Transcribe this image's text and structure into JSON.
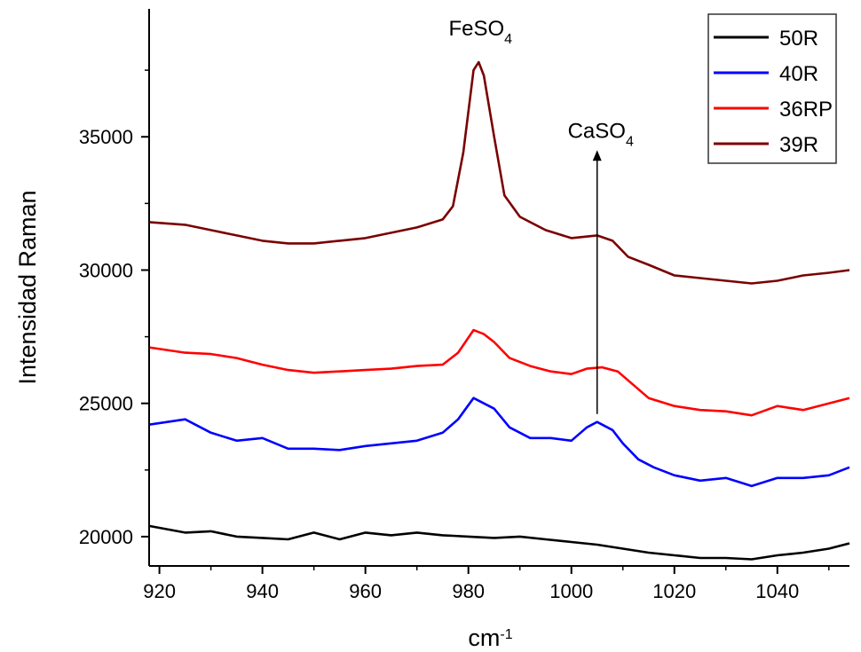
{
  "chart_data": {
    "type": "line",
    "title": "",
    "xlabel": "cm",
    "xlabel_sup": "-1",
    "ylabel": "Intensidad Raman",
    "xlim": [
      918,
      1054
    ],
    "ylim": [
      18900,
      39800
    ],
    "xticks": [
      920,
      940,
      960,
      980,
      1000,
      1020,
      1040
    ],
    "yticks": [
      20000,
      25000,
      30000,
      35000
    ],
    "grid": false,
    "legend_position": "top-right",
    "series": [
      {
        "name": "50R",
        "color": "#000000",
        "x": [
          918,
          925,
          930,
          935,
          940,
          945,
          950,
          955,
          960,
          965,
          970,
          975,
          980,
          985,
          990,
          995,
          1000,
          1005,
          1010,
          1015,
          1020,
          1025,
          1030,
          1035,
          1040,
          1045,
          1050,
          1054
        ],
        "y": [
          20400,
          20150,
          20200,
          20000,
          19950,
          19900,
          20150,
          19900,
          20150,
          20050,
          20150,
          20050,
          20000,
          19950,
          20000,
          19900,
          19800,
          19700,
          19550,
          19400,
          19300,
          19200,
          19200,
          19150,
          19300,
          19400,
          19550,
          19750
        ]
      },
      {
        "name": "40R",
        "color": "#0000ff",
        "x": [
          918,
          925,
          930,
          935,
          940,
          945,
          950,
          955,
          960,
          965,
          970,
          975,
          978,
          981,
          983,
          985,
          988,
          992,
          996,
          1000,
          1003,
          1005,
          1008,
          1010,
          1013,
          1016,
          1020,
          1025,
          1030,
          1035,
          1040,
          1045,
          1050,
          1054
        ],
        "y": [
          24200,
          24400,
          23900,
          23600,
          23700,
          23300,
          23300,
          23250,
          23400,
          23500,
          23600,
          23900,
          24400,
          25200,
          25000,
          24800,
          24100,
          23700,
          23700,
          23600,
          24100,
          24300,
          24000,
          23500,
          22900,
          22600,
          22300,
          22100,
          22200,
          21900,
          22200,
          22200,
          22300,
          22600
        ]
      },
      {
        "name": "36RP",
        "color": "#ff0000",
        "x": [
          918,
          925,
          930,
          935,
          940,
          945,
          950,
          955,
          960,
          965,
          970,
          975,
          978,
          981,
          983,
          985,
          988,
          992,
          996,
          1000,
          1003,
          1006,
          1009,
          1012,
          1015,
          1020,
          1025,
          1030,
          1035,
          1040,
          1045,
          1050,
          1054
        ],
        "y": [
          27100,
          26900,
          26850,
          26700,
          26450,
          26250,
          26150,
          26200,
          26250,
          26300,
          26400,
          26450,
          26900,
          27750,
          27600,
          27300,
          26700,
          26400,
          26200,
          26100,
          26300,
          26350,
          26200,
          25700,
          25200,
          24900,
          24750,
          24700,
          24550,
          24900,
          24750,
          25000,
          25200
        ]
      },
      {
        "name": "39R",
        "color": "#7a0000",
        "x": [
          918,
          925,
          930,
          935,
          940,
          945,
          950,
          955,
          960,
          965,
          970,
          975,
          977,
          979,
          981,
          982,
          983,
          985,
          987,
          990,
          995,
          1000,
          1005,
          1008,
          1011,
          1015,
          1020,
          1025,
          1030,
          1035,
          1040,
          1045,
          1050,
          1054
        ],
        "y": [
          31800,
          31700,
          31500,
          31300,
          31100,
          31000,
          31000,
          31100,
          31200,
          31400,
          31600,
          31900,
          32400,
          34400,
          37500,
          37800,
          37300,
          35000,
          32800,
          32000,
          31500,
          31200,
          31300,
          31100,
          30500,
          30200,
          29800,
          29700,
          29600,
          29500,
          29600,
          29800,
          29900,
          30000
        ]
      }
    ],
    "annotations": [
      {
        "text": "FeSO",
        "sub": "4",
        "x": 982,
        "y": 37800
      },
      {
        "text": "CaSO",
        "sub": "4",
        "x": 1005,
        "y": 24600,
        "arrow_to_y": 34500
      }
    ]
  }
}
